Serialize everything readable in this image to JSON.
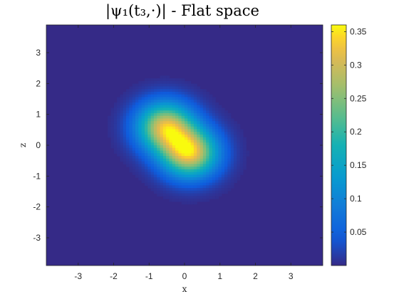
{
  "chart_data": {
    "type": "heatmap",
    "title": "|ψ₁(t₃,·)| - Flat space",
    "xlabel": "x",
    "ylabel": "z",
    "xlim": [
      -3.9,
      3.9
    ],
    "ylim": [
      -3.9,
      3.9
    ],
    "x_ticks": [
      -3,
      -2,
      -1,
      0,
      1,
      2,
      3
    ],
    "y_ticks": [
      3,
      2,
      1,
      0,
      -1,
      -2,
      -3
    ],
    "colorbar": {
      "min": 0.0,
      "max": 0.36,
      "ticks": [
        0.05,
        0.1,
        0.15,
        0.2,
        0.25,
        0.3,
        0.35
      ],
      "tick_labels": [
        "0.05",
        "0.1",
        "0.15",
        "0.2",
        "0.25",
        "0.3",
        "0.35"
      ],
      "colormap": "parula"
    },
    "peaks": [
      {
        "x": -0.55,
        "z": 0.6,
        "value": 0.3,
        "sigma": 0.55
      },
      {
        "x": 0.15,
        "z": -0.25,
        "value": 0.32,
        "sigma": 0.55
      }
    ],
    "grid": false,
    "colors": {
      "background": "#3e26a8",
      "low": "#352a87",
      "high": "#f9fb0e"
    }
  }
}
